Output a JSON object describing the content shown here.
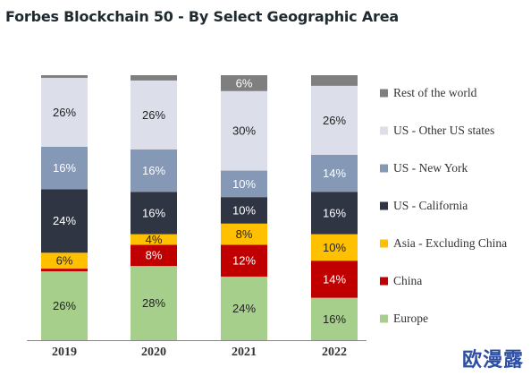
{
  "chart_data": {
    "type": "bar",
    "stacked": true,
    "title": "Forbes Blockchain 50 - By Select Geographic Area",
    "categories": [
      "2019",
      "2020",
      "2021",
      "2022"
    ],
    "ylim": [
      0,
      100
    ],
    "legend_position": "right",
    "grid": false,
    "series": [
      {
        "name": "Europe",
        "color": "#a6cf8c",
        "label_color": "#222222",
        "values": [
          26,
          28,
          24,
          16
        ],
        "labels": [
          "26%",
          "28%",
          "24%",
          "16%"
        ]
      },
      {
        "name": "China",
        "color": "#c00000",
        "label_color": "#ffffff",
        "values": [
          1,
          8,
          12,
          14
        ],
        "labels": [
          "",
          "8%",
          "12%",
          "14%"
        ]
      },
      {
        "name": "Asia - Excluding China",
        "color": "#ffc000",
        "label_color": "#222222",
        "values": [
          6,
          4,
          8,
          10
        ],
        "labels": [
          "6%",
          "4%",
          "8%",
          "10%"
        ]
      },
      {
        "name": "US - California",
        "color": "#2f3542",
        "label_color": "#ffffff",
        "values": [
          24,
          16,
          10,
          16
        ],
        "labels": [
          "24%",
          "16%",
          "10%",
          "16%"
        ]
      },
      {
        "name": "US - New York",
        "color": "#8598b5",
        "label_color": "#ffffff",
        "values": [
          16,
          16,
          10,
          14
        ],
        "labels": [
          "16%",
          "16%",
          "10%",
          "14%"
        ]
      },
      {
        "name": "US - Other US states",
        "color": "#dcdfe9",
        "label_color": "#222222",
        "values": [
          26,
          26,
          30,
          26
        ],
        "labels": [
          "26%",
          "26%",
          "30%",
          "26%"
        ]
      },
      {
        "name": "Rest of the world",
        "color": "#7f7f7f",
        "label_color": "#ffffff",
        "values": [
          1,
          2,
          6,
          4
        ],
        "labels": [
          "",
          "",
          "6%",
          ""
        ]
      }
    ]
  },
  "watermark": "欧漫露"
}
